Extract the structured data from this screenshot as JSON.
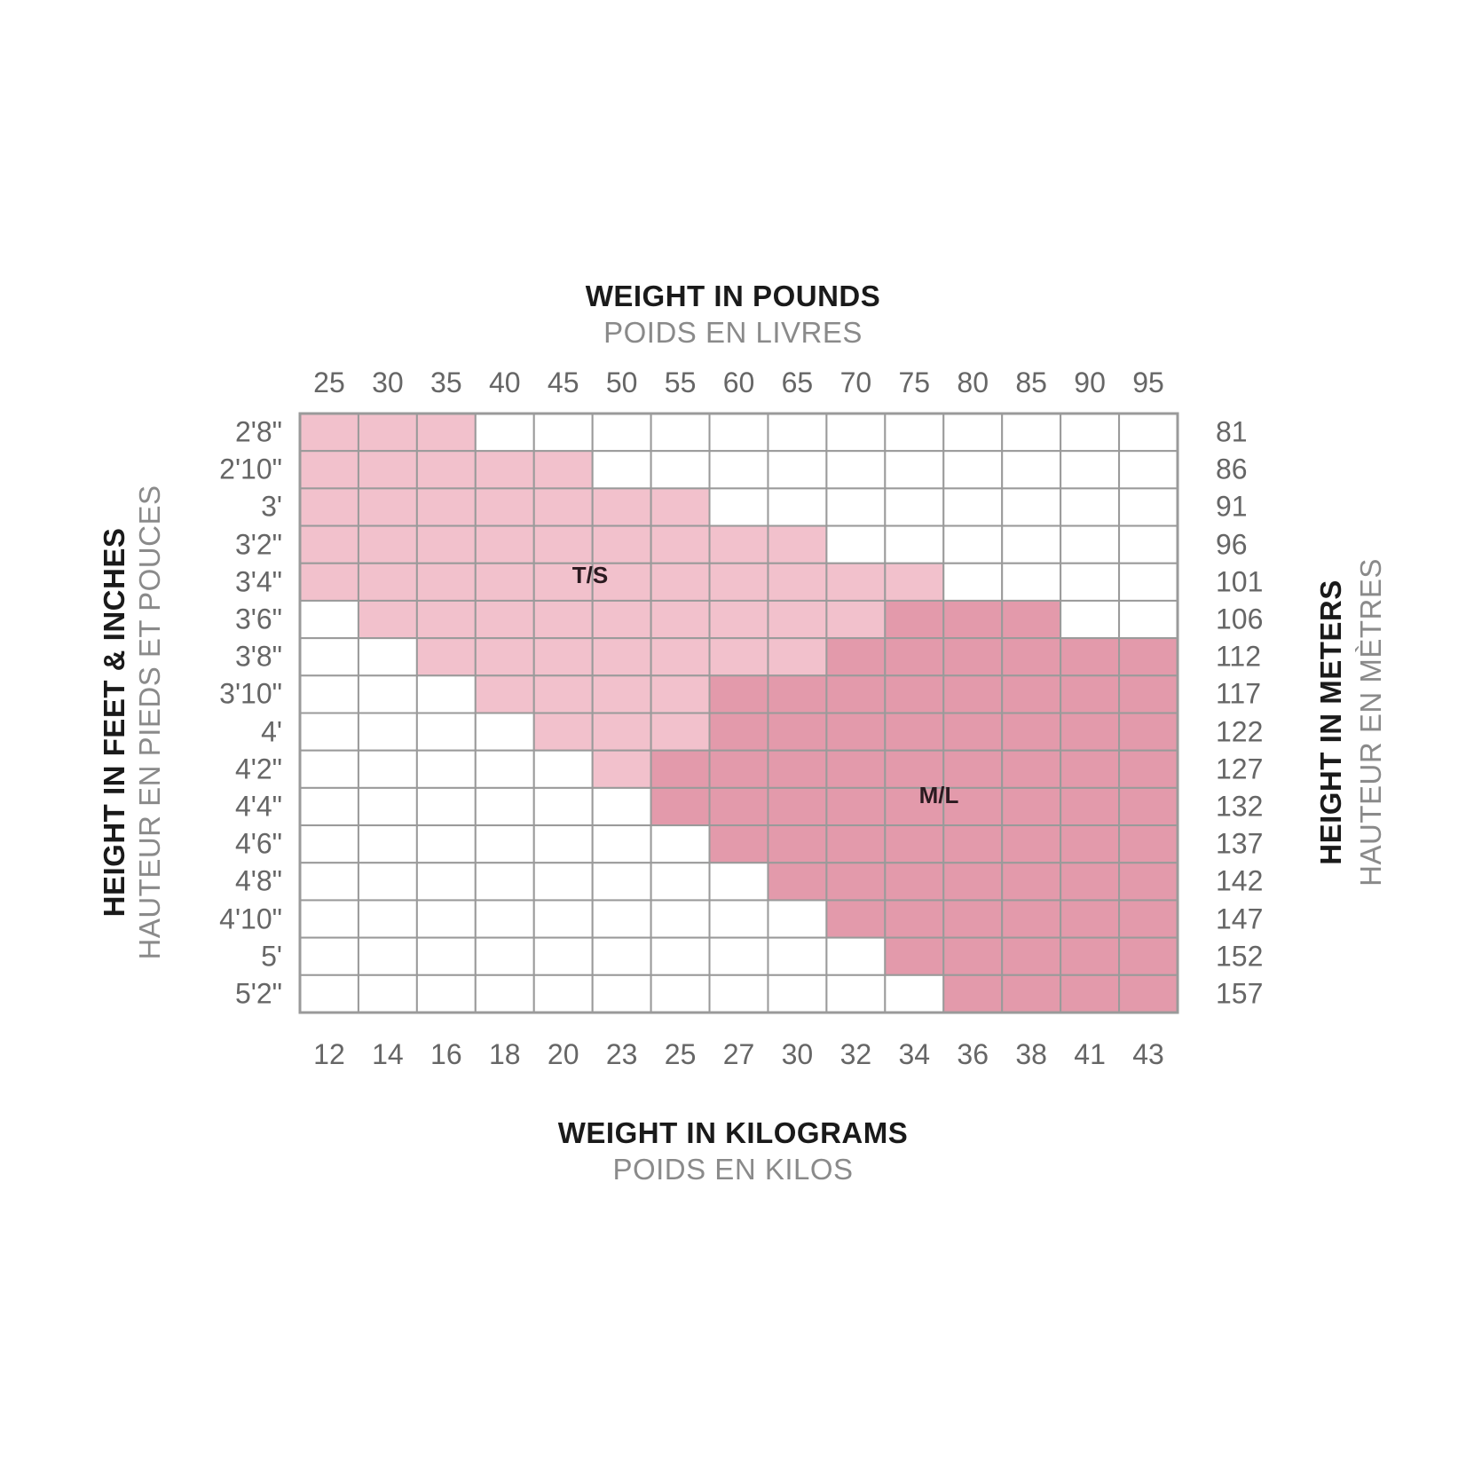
{
  "top_title": "WEIGHT IN POUNDS",
  "top_subtitle": "POIDS EN LIVRES",
  "bottom_title": "WEIGHT IN KILOGRAMS",
  "bottom_subtitle": "POIDS EN KILOS",
  "left_title": "HEIGHT IN FEET & INCHES",
  "left_subtitle": "HAUTEUR EN PIEDS ET POUCES",
  "right_title": "HEIGHT IN METERS",
  "right_subtitle": "HAUTEUR EN MÈTRES",
  "colors": {
    "ts_fill": "#f2c1cc",
    "ml_fill": "#e39aab",
    "grid_line": "#9a9a9a",
    "blank_fill": "#ffffff"
  },
  "chart_data": {
    "type": "heatmap",
    "x_pounds": [
      "25",
      "30",
      "35",
      "40",
      "45",
      "50",
      "55",
      "60",
      "65",
      "70",
      "75",
      "80",
      "85",
      "90",
      "95"
    ],
    "x_kilograms": [
      "12",
      "14",
      "16",
      "18",
      "20",
      "23",
      "25",
      "27",
      "30",
      "32",
      "34",
      "36",
      "38",
      "41",
      "43"
    ],
    "y_feet_inches": [
      "2'8\"",
      "2'10\"",
      "3'",
      "3'2\"",
      "3'4\"",
      "3'6\"",
      "3'8\"",
      "3'10\"",
      "4'",
      "4'2\"",
      "4'4\"",
      "4'6\"",
      "4'8\"",
      "4'10\"",
      "5'",
      "5'2\""
    ],
    "y_meters": [
      "81",
      "86",
      "91",
      "96",
      "101",
      "106",
      "112",
      "117",
      "122",
      "127",
      "132",
      "137",
      "142",
      "147",
      "152",
      "157"
    ],
    "sizes": [
      {
        "label": "T/S"
      },
      {
        "label": "M/L"
      }
    ],
    "cells": [
      "TTT............",
      "TTTTT..........",
      "TTTTTTT........",
      "TTTTTTTTT......",
      "TTTTTTTTTTT....",
      ".TTTTTTTTTMMM..",
      "..TTTTTTTMMMMMM",
      "...TTTTMMMMMMMM",
      "....TTTMMMMMMMM",
      ".....TMMMMMMMMM",
      "......MMMMMMMMM",
      ".......MMMMMMMM",
      "........MMMMMMM",
      ".........MMMMMM",
      "..........MMMMM",
      "...........MMMM"
    ],
    "legend_key": {
      "T": "T/S",
      "M": "M/L",
      ".": ""
    }
  }
}
